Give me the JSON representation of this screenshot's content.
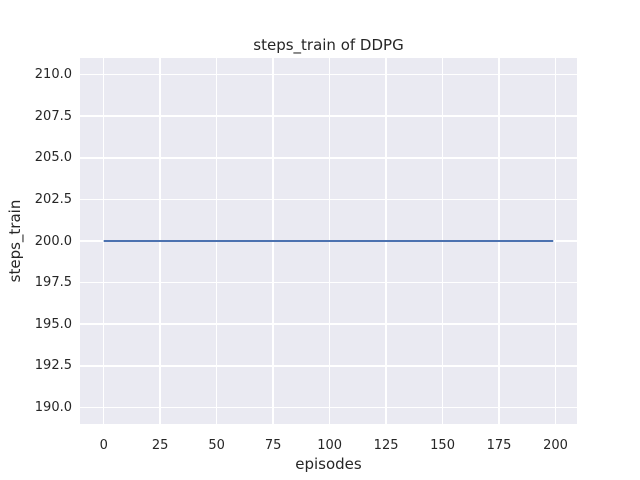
{
  "chart_data": {
    "type": "line",
    "title": "steps_train of DDPG",
    "xlabel": "episodes",
    "ylabel": "steps_train",
    "grid": true,
    "legend": "none",
    "axes_background": "#eaeaf2",
    "grid_color": "#ffffff",
    "xlim": [
      -10.5,
      209.5
    ],
    "ylim": [
      189.0,
      211.0
    ],
    "x_ticks": [
      0,
      25,
      50,
      75,
      100,
      125,
      150,
      175,
      200
    ],
    "x_tick_labels": [
      "0",
      "25",
      "50",
      "75",
      "100",
      "125",
      "150",
      "175",
      "200"
    ],
    "y_ticks": [
      190.0,
      192.5,
      195.0,
      197.5,
      200.0,
      202.5,
      205.0,
      207.5,
      210.0
    ],
    "y_tick_labels": [
      "190.0",
      "192.5",
      "195.0",
      "197.5",
      "200.0",
      "202.5",
      "205.0",
      "207.5",
      "210.0"
    ],
    "series": [
      {
        "name": "steps_train",
        "color": "#4c72b0",
        "note": "constant line: steps_train = 200 for every episode 0 through 199",
        "x": [
          0,
          199
        ],
        "y": [
          200,
          200
        ]
      }
    ]
  }
}
